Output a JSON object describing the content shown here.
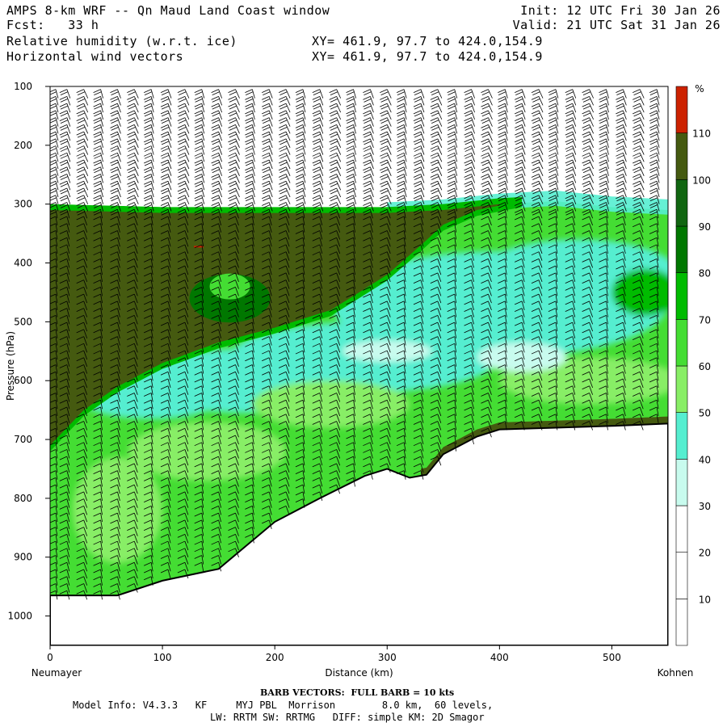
{
  "header": {
    "title": "AMPS 8-km WRF -- Qn Maud Land Coast window",
    "forecast": "Fcst:   33 h",
    "field1": "Relative humidity (w.r.t. ice)",
    "field2": "Horizontal wind vectors",
    "init": "Init: 12 UTC Fri 30 Jan 26",
    "valid": "Valid: 21 UTC Sat 31 Jan 26",
    "xy1": "XY= 461.9, 97.7 to 424.0,154.9",
    "xy2": "XY= 461.9, 97.7 to 424.0,154.9"
  },
  "footer": {
    "barb_note": "BARB VECTORS:  FULL BARB = 10 kts",
    "model_line1": "Model Info: V4.3.3   KF     MYJ PBL  Morrison        8.0 km,  60 levels,",
    "model_line2": "LW: RRTM SW: RRTMG   DIFF: simple KM: 2D Smagor"
  },
  "chart_data": {
    "type": "heatmap",
    "description_kind": "vertical cross-section",
    "xlabel": "Distance (km)",
    "ylabel": "Pressure (hPa)",
    "x_left_label": "Neumayer",
    "x_right_label": "Kohnen",
    "xlim": [
      0,
      550
    ],
    "ylim": [
      100,
      1050
    ],
    "y_inverted": true,
    "xticks": [
      0,
      100,
      200,
      300,
      400,
      500
    ],
    "yticks": [
      100,
      200,
      300,
      400,
      500,
      600,
      700,
      800,
      900,
      1000
    ],
    "colorbar": {
      "unit": "%",
      "levels": [
        10,
        20,
        30,
        40,
        50,
        60,
        70,
        80,
        90,
        100,
        110
      ],
      "colors": [
        "#ffffff",
        "#ffffff",
        "#ffffff",
        "#c8fbee",
        "#55eed0",
        "#88ee66",
        "#44dd33",
        "#00bb00",
        "#007700",
        "#116611",
        "#455a10",
        "#cc2200"
      ]
    },
    "terrain_surface_hpa": {
      "x": [
        0,
        60,
        100,
        150,
        175,
        200,
        240,
        280,
        300,
        320,
        335,
        350,
        365,
        380,
        400,
        450,
        500,
        550
      ],
      "p": [
        965,
        965,
        940,
        920,
        880,
        840,
        800,
        762,
        750,
        765,
        760,
        725,
        710,
        695,
        683,
        680,
        677,
        673
      ]
    },
    "saturated_layer_top_hpa": {
      "x": [
        0,
        100,
        200,
        300,
        350,
        400,
        450,
        500,
        550
      ],
      "p": [
        300,
        305,
        305,
        305,
        300,
        290,
        285,
        295,
        300
      ]
    },
    "saturated_layer_base_hpa": {
      "x": [
        0,
        30,
        60,
        100,
        150,
        200,
        250,
        300,
        330,
        350,
        380,
        420
      ],
      "p": [
        720,
        660,
        620,
        580,
        545,
        520,
        490,
        430,
        380,
        345,
        320,
        305
      ]
    },
    "barbs": {
      "x_positions": [
        5,
        15,
        30,
        45,
        60,
        75,
        90,
        105,
        120,
        135,
        150,
        165,
        180,
        195,
        210,
        225,
        240,
        255,
        270,
        285,
        300,
        315,
        330,
        345,
        360,
        375,
        390,
        405,
        420,
        435,
        450,
        465,
        480,
        495,
        510,
        525,
        540
      ],
      "full_barb_kts": 10
    }
  }
}
